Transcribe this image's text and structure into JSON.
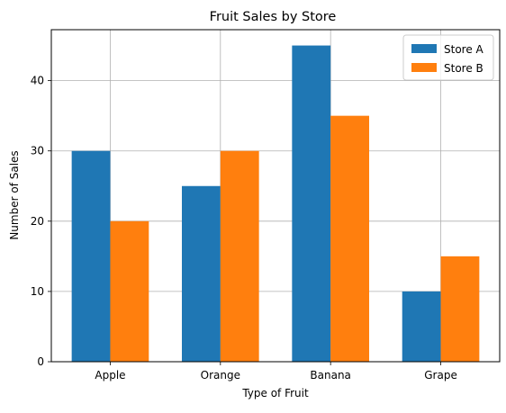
{
  "chart_data": {
    "type": "bar",
    "title": "Fruit Sales by Store",
    "xlabel": "Type of Fruit",
    "ylabel": "Number of Sales",
    "categories": [
      "Apple",
      "Orange",
      "Banana",
      "Grape"
    ],
    "series": [
      {
        "name": "Store A",
        "values": [
          30,
          25,
          45,
          10
        ],
        "color": "#1f77b4"
      },
      {
        "name": "Store B",
        "values": [
          20,
          30,
          35,
          15
        ],
        "color": "#ff7f0e"
      }
    ],
    "ylim": [
      0,
      47.25
    ],
    "yticks": [
      0,
      10,
      20,
      30,
      40
    ],
    "grid": true,
    "legend_position": "top-right"
  }
}
